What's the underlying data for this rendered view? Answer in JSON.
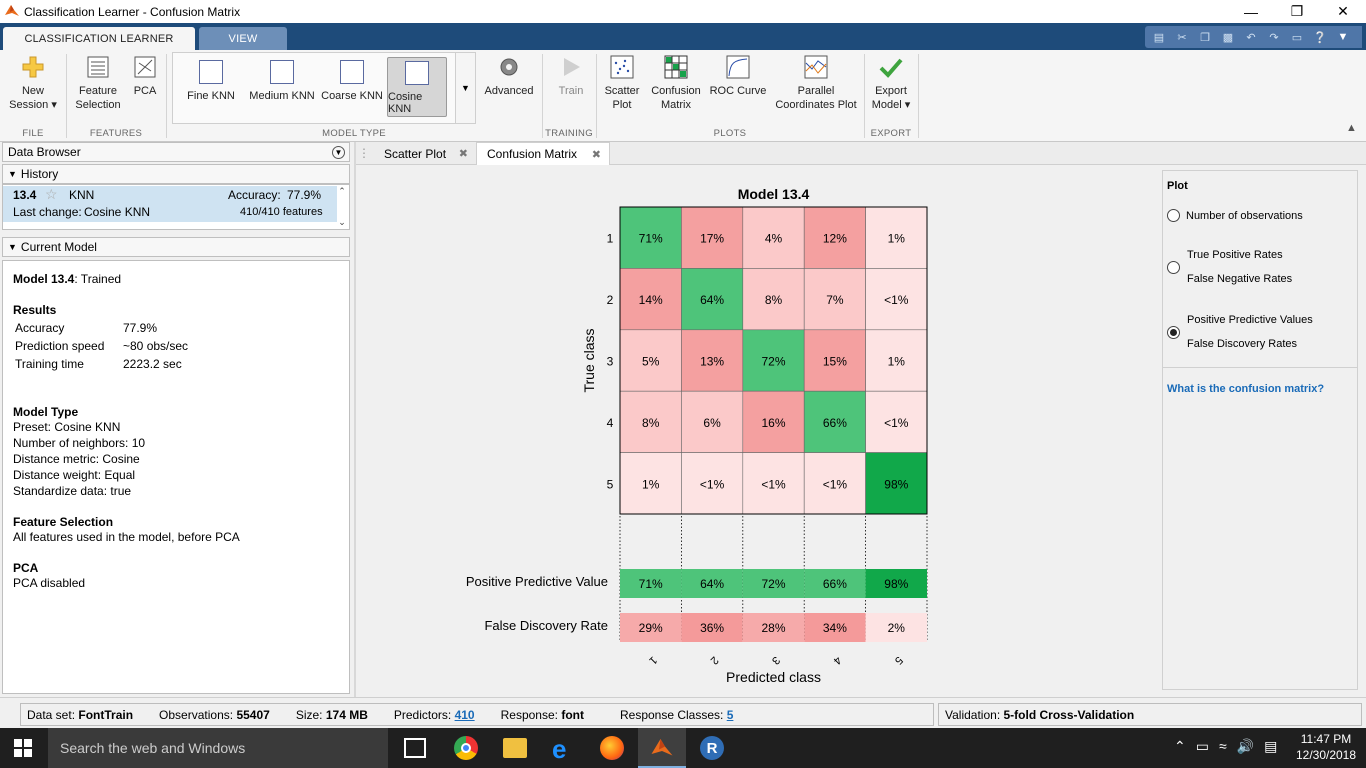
{
  "window": {
    "title": "Classification Learner - Confusion Matrix"
  },
  "ribbon_tabs": [
    "CLASSIFICATION LEARNER",
    "VIEW"
  ],
  "ribbon": {
    "new_session": [
      "New",
      "Session"
    ],
    "feature_selection": [
      "Feature",
      "Selection"
    ],
    "pca": "PCA",
    "model_types": [
      "Fine KNN",
      "Medium KNN",
      "Coarse KNN",
      "Cosine KNN"
    ],
    "advanced": "Advanced",
    "train": "Train",
    "scatter_plot": [
      "Scatter",
      "Plot"
    ],
    "confusion_matrix": [
      "Confusion",
      "Matrix"
    ],
    "roc_curve": "ROC Curve",
    "parallel_coords": [
      "Parallel",
      "Coordinates Plot"
    ],
    "export_model": [
      "Export",
      "Model"
    ],
    "groups": [
      "FILE",
      "FEATURES",
      "MODEL TYPE",
      "TRAINING",
      "PLOTS",
      "EXPORT"
    ]
  },
  "data_browser": {
    "title": "Data Browser",
    "history_label": "History",
    "history_item": {
      "id": "13.4",
      "type": "KNN",
      "accuracy_label": "Accuracy:",
      "accuracy": "77.9%",
      "last_change_label": "Last change:",
      "last_change": "Cosine KNN",
      "features": "410/410 features"
    },
    "current_model_label": "Current Model"
  },
  "current_model": {
    "status_name": "Model 13.4",
    "status_suffix": ": Trained",
    "results_title": "Results",
    "results": [
      {
        "k": "Accuracy",
        "v": "77.9%"
      },
      {
        "k": "Prediction speed",
        "v": "~80 obs/sec"
      },
      {
        "k": "Training time",
        "v": "2223.2 sec"
      }
    ],
    "model_type_title": "Model Type",
    "model_type": [
      "Preset: Cosine KNN",
      "Number of neighbors: 10",
      "Distance metric: Cosine",
      "Distance weight: Equal",
      "Standardize data: true"
    ],
    "feature_selection_title": "Feature Selection",
    "feature_selection": "All features used in the model, before PCA",
    "pca_title": "PCA",
    "pca": "PCA disabled"
  },
  "doc_tabs": [
    "Scatter Plot",
    "Confusion Matrix"
  ],
  "chart_data": {
    "type": "heatmap",
    "title": "Model 13.4",
    "ylabel": "True class",
    "xlabel": "Predicted class",
    "rows": [
      "1",
      "2",
      "3",
      "4",
      "5"
    ],
    "cols": [
      "1",
      "2",
      "3",
      "4",
      "5"
    ],
    "cells": [
      [
        "71%",
        "17%",
        "4%",
        "12%",
        "1%"
      ],
      [
        "14%",
        "64%",
        "8%",
        "7%",
        "<1%"
      ],
      [
        "5%",
        "13%",
        "72%",
        "15%",
        "1%"
      ],
      [
        "8%",
        "6%",
        "16%",
        "66%",
        "<1%"
      ],
      [
        "1%",
        "<1%",
        "<1%",
        "<1%",
        "98%"
      ]
    ],
    "ppv_label": "Positive Predictive Value",
    "ppv": [
      "71%",
      "64%",
      "72%",
      "66%",
      "98%"
    ],
    "fdr_label": "False Discovery Rate",
    "fdr": [
      "29%",
      "36%",
      "28%",
      "34%",
      "2%"
    ],
    "colors": {
      "diag_high": "#11a84a",
      "diag": "#4ec47a",
      "off_strong": "#f4a0a0",
      "off_mid": "#fbc9c9",
      "off_low": "#fde3e3"
    }
  },
  "plot_options": {
    "title": "Plot",
    "opt1": "Number of observations",
    "opt2a": "True Positive Rates",
    "opt2b": "False Negative Rates",
    "opt3a": "Positive Predictive Values",
    "opt3b": "False Discovery Rates",
    "help_link": "What is the confusion matrix?"
  },
  "status": {
    "dataset_label": "Data set:",
    "dataset": "FontTrain",
    "obs_label": "Observations:",
    "obs": "55407",
    "size_label": "Size:",
    "size": "174 MB",
    "pred_label": "Predictors:",
    "pred": "410",
    "resp_label": "Response:",
    "resp": "font",
    "classes_label": "Response Classes:",
    "classes": "5",
    "validation_label": "Validation:",
    "validation": "5-fold Cross-Validation"
  },
  "taskbar": {
    "search": "Search the web and Windows",
    "time": "11:47 PM",
    "date": "12/30/2018"
  }
}
